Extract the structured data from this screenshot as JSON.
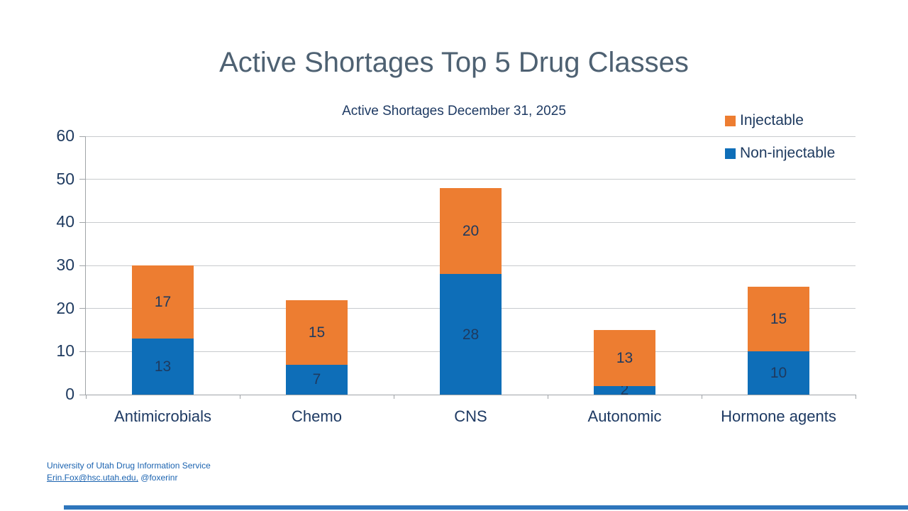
{
  "title": "Active Shortages Top 5 Drug Classes",
  "chart_data": {
    "type": "bar",
    "stacked": true,
    "title": "Active Shortages December 31, 2025",
    "categories": [
      "Antimicrobials",
      "Chemo",
      "CNS",
      "Autonomic",
      "Hormone agents"
    ],
    "series": [
      {
        "name": "Non-injectable",
        "color": "#0e6eb8",
        "values": [
          13,
          7,
          28,
          2,
          10
        ]
      },
      {
        "name": "Injectable",
        "color": "#ed7d31",
        "values": [
          17,
          15,
          20,
          13,
          15
        ]
      }
    ],
    "totals": [
      30,
      22,
      48,
      15,
      25
    ],
    "xlabel": "",
    "ylabel": "",
    "ylim": [
      0,
      60
    ],
    "yticks": [
      0,
      10,
      20,
      30,
      40,
      50,
      60
    ],
    "grid": true,
    "legend_position": "top-right",
    "legend_order": [
      "Injectable",
      "Non-injectable"
    ],
    "data_labels": true
  },
  "colors": {
    "title_text": "#4e6172",
    "axis_text": "#1e3a5f",
    "gridline": "#c8cbce",
    "axis_line": "#a0a4a8",
    "footer_text": "#1b63b0",
    "bottom_bar": "#2e76bc"
  },
  "footer": {
    "organization": "University of Utah Drug Information Service",
    "email": "Erin.Fox@hsc.utah.edu,",
    "handle": " @foxerinr"
  }
}
